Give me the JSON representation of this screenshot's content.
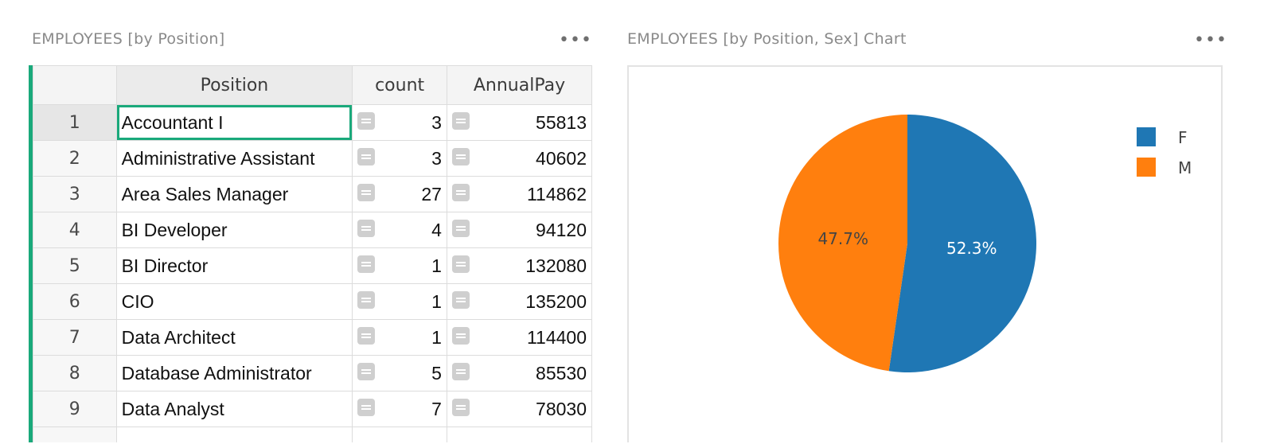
{
  "left_panel": {
    "title": "EMPLOYEES [by Position]",
    "menu": "•••",
    "columns": [
      "Position",
      "count",
      "AnnualPay"
    ],
    "rows": [
      {
        "num": "1",
        "position": "Accountant I",
        "count": "3",
        "annual_pay": "55813"
      },
      {
        "num": "2",
        "position": "Administrative Assistant",
        "count": "3",
        "annual_pay": "40602"
      },
      {
        "num": "3",
        "position": "Area Sales Manager",
        "count": "27",
        "annual_pay": "114862"
      },
      {
        "num": "4",
        "position": "BI Developer",
        "count": "4",
        "annual_pay": "94120"
      },
      {
        "num": "5",
        "position": "BI Director",
        "count": "1",
        "annual_pay": "132080"
      },
      {
        "num": "6",
        "position": "CIO",
        "count": "1",
        "annual_pay": "135200"
      },
      {
        "num": "7",
        "position": "Data Architect",
        "count": "1",
        "annual_pay": "114400"
      },
      {
        "num": "8",
        "position": "Database Administrator",
        "count": "5",
        "annual_pay": "85530"
      },
      {
        "num": "9",
        "position": "Data Analyst",
        "count": "7",
        "annual_pay": "78030"
      }
    ]
  },
  "right_panel": {
    "title": "EMPLOYEES [by Position, Sex] Chart",
    "menu": "•••"
  },
  "chart_data": {
    "type": "pie",
    "slices": [
      {
        "label": "F",
        "value": 52.3,
        "display": "52.3%",
        "color": "#1f77b4",
        "text_color": "#ffffff"
      },
      {
        "label": "M",
        "value": 47.7,
        "display": "47.7%",
        "color": "#ff7f0e",
        "text_color": "#444444"
      }
    ],
    "legend": [
      "F",
      "M"
    ],
    "legend_position": "top-right"
  }
}
